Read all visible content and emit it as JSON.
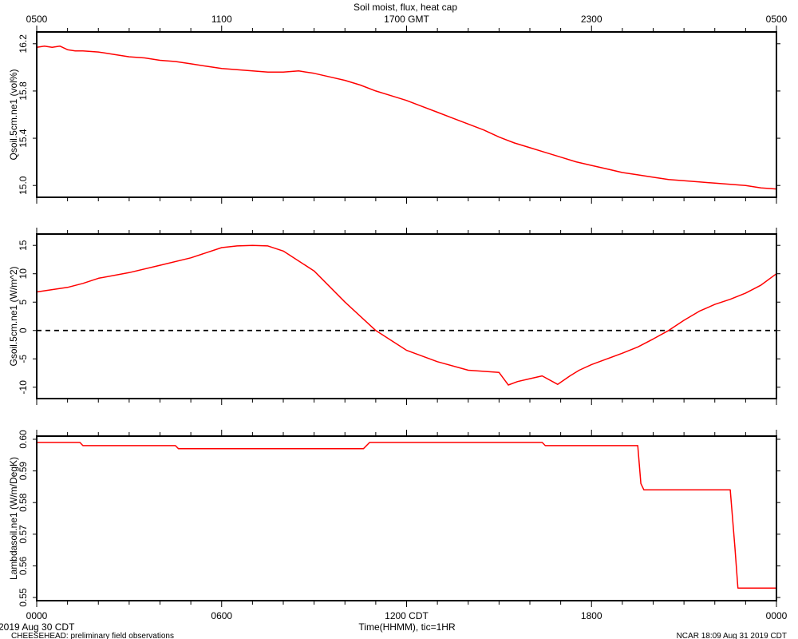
{
  "title": "Soil moist, flux, heat cap",
  "top_axis": {
    "ticks": [
      "0500",
      "1100",
      "1700 GMT",
      "2300",
      "0500"
    ]
  },
  "bottom_axis": {
    "ticks": [
      "0000",
      "0600",
      "1200 CDT",
      "1800",
      "0000"
    ],
    "label": "Time(HHMM), tic=1HR"
  },
  "footer": {
    "date": "2019 Aug 30 CDT",
    "source": "CHEESEHEAD: preliminary field observations",
    "stamp": "NCAR 18:09 Aug 31 2019 CDT"
  },
  "colors": {
    "series": "#ff0000",
    "axes": "#000000",
    "zero_line": "#000000"
  },
  "chart_data": [
    {
      "type": "line",
      "ylabel": "Qsoil.5cm.ne1 (vol%)",
      "xlim": [
        0,
        24
      ],
      "ylim": [
        14.9,
        16.3
      ],
      "yticks": [
        "15.0",
        "15.4",
        "15.8",
        "16.2"
      ],
      "series": [
        {
          "x": [
            0,
            0.25,
            0.5,
            0.75,
            1.0,
            1.25,
            1.5,
            2,
            2.5,
            3,
            3.5,
            4,
            4.5,
            5,
            5.5,
            6,
            6.5,
            7,
            7.5,
            8,
            8.5,
            9,
            9.5,
            10,
            10.5,
            11,
            11.5,
            12,
            12.5,
            13,
            13.5,
            14,
            14.5,
            15,
            15.5,
            16,
            16.5,
            17,
            17.5,
            18,
            18.5,
            19,
            19.5,
            20,
            20.5,
            21,
            21.5,
            22,
            22.5,
            23,
            23.5,
            24
          ],
          "y": [
            16.17,
            16.18,
            16.17,
            16.18,
            16.15,
            16.14,
            16.14,
            16.13,
            16.11,
            16.09,
            16.08,
            16.06,
            16.05,
            16.03,
            16.01,
            15.99,
            15.98,
            15.97,
            15.96,
            15.96,
            15.97,
            15.95,
            15.92,
            15.89,
            15.85,
            15.8,
            15.76,
            15.72,
            15.67,
            15.62,
            15.57,
            15.52,
            15.47,
            15.41,
            15.36,
            15.32,
            15.28,
            15.24,
            15.2,
            15.17,
            15.14,
            15.11,
            15.09,
            15.07,
            15.05,
            15.04,
            15.03,
            15.02,
            15.01,
            15.0,
            14.98,
            14.97
          ]
        }
      ]
    },
    {
      "type": "line",
      "ylabel": "Gsoil.5cm.ne1 (W/m^2)",
      "xlim": [
        0,
        24
      ],
      "ylim": [
        -12,
        17
      ],
      "yticks": [
        "-10",
        "-5",
        "0",
        "5",
        "10",
        "15"
      ],
      "zero_line": true,
      "series": [
        {
          "x": [
            0,
            1,
            1.5,
            2,
            3,
            4,
            5,
            5.5,
            6,
            6.5,
            7,
            7.5,
            8,
            9,
            10,
            11,
            12,
            13,
            14,
            14.5,
            15,
            15.3,
            15.6,
            16,
            16.4,
            16.9,
            17.3,
            17.6,
            18,
            18.5,
            19,
            19.5,
            20,
            20.5,
            21,
            21.5,
            22,
            22.5,
            23,
            23.5,
            24
          ],
          "y": [
            6.8,
            7.6,
            8.3,
            9.2,
            10.2,
            11.5,
            12.8,
            13.7,
            14.6,
            14.9,
            15.0,
            14.9,
            14.0,
            10.5,
            5.0,
            0.0,
            -3.5,
            -5.5,
            -7.0,
            -7.2,
            -7.4,
            -9.6,
            -9.0,
            -8.5,
            -8.0,
            -9.5,
            -8.0,
            -7.0,
            -6.0,
            -5.0,
            -4.0,
            -2.9,
            -1.5,
            0.0,
            1.8,
            3.4,
            4.6,
            5.5,
            6.6,
            8.0,
            10.0
          ]
        }
      ]
    },
    {
      "type": "line",
      "ylabel": "Lambdasoil.ne1 (W/m/DegK)",
      "xlim": [
        0,
        24
      ],
      "ylim": [
        0.549,
        0.601
      ],
      "yticks": [
        "0.55",
        "0.56",
        "0.57",
        "0.58",
        "0.59",
        "0.60"
      ],
      "series": [
        {
          "x": [
            0,
            1.4,
            1.5,
            4.5,
            4.6,
            10.6,
            10.8,
            16.4,
            16.5,
            19.5,
            19.6,
            19.7,
            22.5,
            22.65,
            22.75,
            24
          ],
          "y": [
            0.599,
            0.599,
            0.598,
            0.598,
            0.597,
            0.597,
            0.599,
            0.599,
            0.598,
            0.598,
            0.586,
            0.584,
            0.584,
            0.566,
            0.553,
            0.553
          ]
        }
      ]
    }
  ]
}
